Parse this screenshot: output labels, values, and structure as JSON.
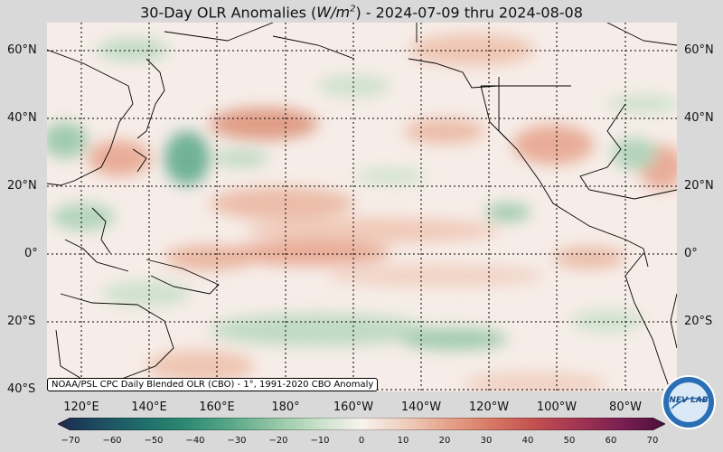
{
  "title": {
    "prefix": "30-Day OLR Anomalies (",
    "unit_base": "W/m",
    "unit_exp": "2",
    "suffix": ") - 2024-07-09 thru 2024-08-08"
  },
  "latitude_labels": [
    "60°N",
    "40°N",
    "20°N",
    "0°",
    "20°S",
    "40°S"
  ],
  "longitude_labels": [
    "120°E",
    "140°E",
    "160°E",
    "180°",
    "160°W",
    "140°W",
    "120°W",
    "100°W",
    "80°W"
  ],
  "credit": "NOAA/PSL CPC Daily Blended OLR (CBO) - 1°, 1991-2020 CBO Anomaly",
  "colorbar": {
    "ticks": [
      "−70",
      "−60",
      "−50",
      "−40",
      "−30",
      "−20",
      "−10",
      "0",
      "10",
      "20",
      "30",
      "40",
      "50",
      "60",
      "70"
    ],
    "min": -70,
    "max": 70,
    "colors": [
      "#1b2a4a",
      "#1e4e63",
      "#1f6f6a",
      "#2e8b73",
      "#5aa888",
      "#93c6a4",
      "#c8e0c8",
      "#f7f3ef",
      "#f0cdbd",
      "#e6a28a",
      "#d87864",
      "#c2504f",
      "#a03552",
      "#7a1f52",
      "#4a0f3a"
    ]
  },
  "logo": {
    "text": "NEV LAB"
  }
}
